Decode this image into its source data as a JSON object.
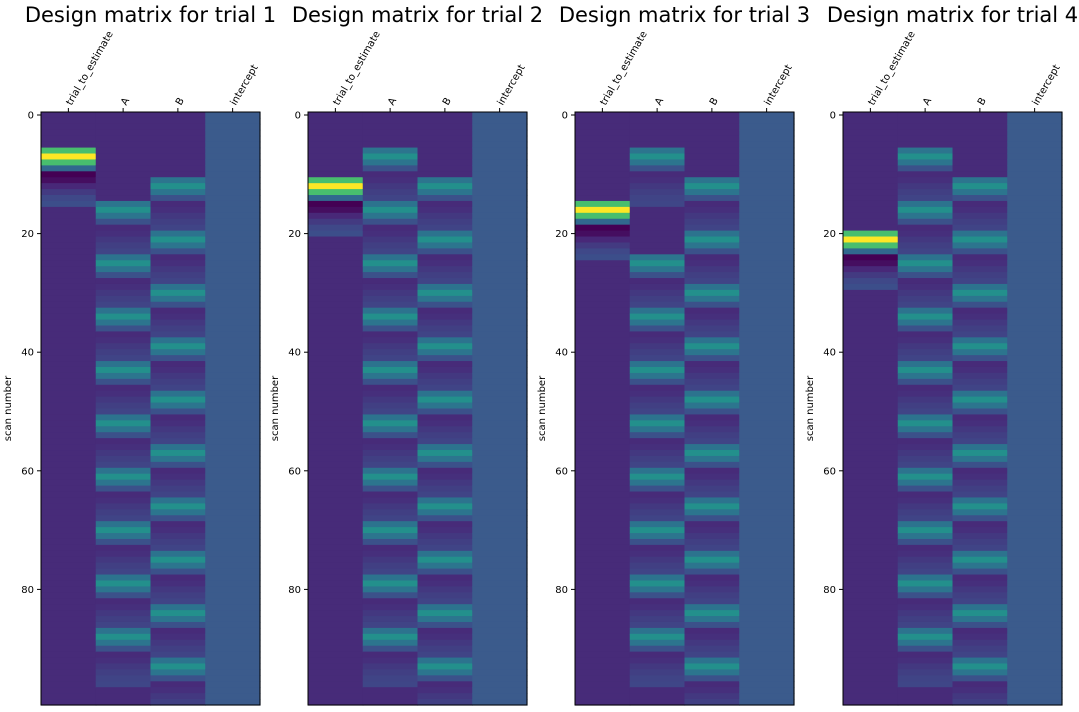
{
  "chart_data": [
    {
      "type": "heatmap",
      "title": "Design matrix for trial 1",
      "columns": [
        "trial_to_estimate",
        "A",
        "B",
        "intercept"
      ],
      "ylabel": "scan number",
      "y_ticks": [
        0,
        20,
        40,
        60,
        80
      ],
      "ylim": [
        0,
        100
      ],
      "trial_onset": 6,
      "colormap": "viridis"
    },
    {
      "type": "heatmap",
      "title": "Design matrix for trial 2",
      "columns": [
        "trial_to_estimate",
        "A",
        "B",
        "intercept"
      ],
      "ylabel": "scan number",
      "y_ticks": [
        0,
        20,
        40,
        60,
        80
      ],
      "ylim": [
        0,
        100
      ],
      "trial_onset": 11,
      "colormap": "viridis"
    },
    {
      "type": "heatmap",
      "title": "Design matrix for trial 3",
      "columns": [
        "trial_to_estimate",
        "A",
        "B",
        "intercept"
      ],
      "ylabel": "scan number",
      "y_ticks": [
        0,
        20,
        40,
        60,
        80
      ],
      "ylim": [
        0,
        100
      ],
      "trial_onset": 15,
      "colormap": "viridis"
    },
    {
      "type": "heatmap",
      "title": "Design matrix for trial 4",
      "columns": [
        "trial_to_estimate",
        "A",
        "B",
        "intercept"
      ],
      "ylabel": "scan number",
      "y_ticks": [
        0,
        20,
        40,
        60,
        80
      ],
      "ylim": [
        0,
        100
      ],
      "trial_onset": 20,
      "colormap": "viridis"
    }
  ],
  "design": {
    "n_scans": 100,
    "a_onsets": [
      6,
      15,
      24,
      33,
      42,
      51,
      60,
      69,
      78,
      87
    ],
    "b_onsets": [
      11,
      20,
      29,
      38,
      47,
      56,
      65,
      74,
      83,
      92
    ],
    "hrf_profile": [
      0.6,
      1.0,
      0.6,
      0.1,
      -0.35,
      -0.3,
      -0.2,
      -0.12,
      -0.06,
      -0.03
    ],
    "baseline_level": 0.12,
    "intercept_level": 0.35,
    "regressor_colors": {
      "trial_peak": "#fde725",
      "trial_undershoot": "#440154",
      "intercept": "#3b5b8c"
    }
  }
}
